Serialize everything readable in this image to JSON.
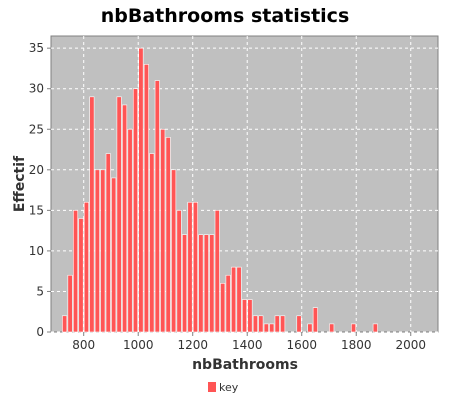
{
  "chart_data": {
    "type": "bar",
    "title": "nbBathrooms statistics",
    "xlabel": "nbBathrooms",
    "ylabel": "Effectif",
    "xlim": [
      680,
      2100
    ],
    "ylim": [
      0,
      36.5
    ],
    "x_ticks": [
      800,
      1000,
      1200,
      1400,
      1600,
      1800,
      2000
    ],
    "y_ticks": [
      0,
      5,
      10,
      15,
      20,
      25,
      30,
      35
    ],
    "grid": true,
    "legend_position": "bottom",
    "bin_width": 20,
    "series": [
      {
        "name": "key",
        "color": "#ff5555",
        "bins": [
          [
            720,
            2
          ],
          [
            740,
            7
          ],
          [
            760,
            15
          ],
          [
            780,
            14
          ],
          [
            800,
            16
          ],
          [
            820,
            29
          ],
          [
            840,
            20
          ],
          [
            860,
            20
          ],
          [
            880,
            22
          ],
          [
            900,
            19
          ],
          [
            920,
            29
          ],
          [
            940,
            28
          ],
          [
            960,
            25
          ],
          [
            980,
            30
          ],
          [
            1000,
            35
          ],
          [
            1020,
            33
          ],
          [
            1040,
            22
          ],
          [
            1060,
            31
          ],
          [
            1080,
            25
          ],
          [
            1100,
            24
          ],
          [
            1120,
            20
          ],
          [
            1140,
            15
          ],
          [
            1160,
            12
          ],
          [
            1180,
            16
          ],
          [
            1200,
            16
          ],
          [
            1220,
            12
          ],
          [
            1240,
            12
          ],
          [
            1260,
            12
          ],
          [
            1280,
            15
          ],
          [
            1300,
            6
          ],
          [
            1320,
            7
          ],
          [
            1340,
            8
          ],
          [
            1360,
            8
          ],
          [
            1380,
            4
          ],
          [
            1400,
            4
          ],
          [
            1420,
            2
          ],
          [
            1440,
            2
          ],
          [
            1460,
            1
          ],
          [
            1480,
            1
          ],
          [
            1500,
            2
          ],
          [
            1520,
            2
          ],
          [
            1580,
            2
          ],
          [
            1620,
            1
          ],
          [
            1640,
            3
          ],
          [
            1700,
            1
          ],
          [
            1780,
            1
          ],
          [
            1860,
            1
          ]
        ]
      }
    ]
  }
}
